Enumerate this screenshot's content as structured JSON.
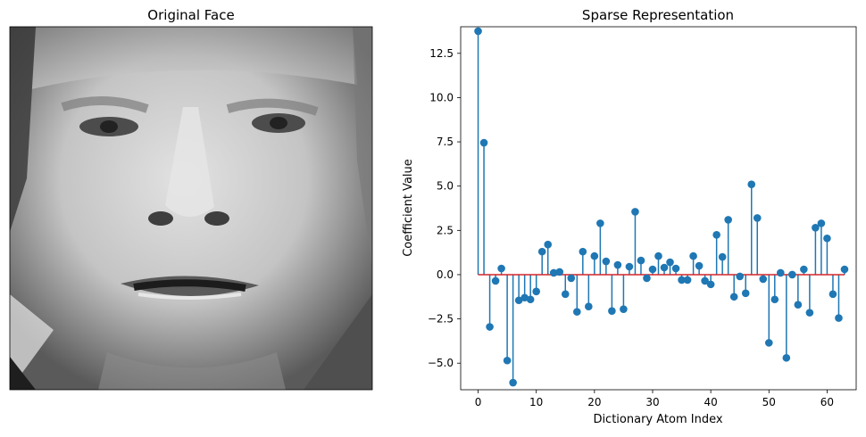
{
  "panels": [
    {
      "title": "Original Face"
    },
    {
      "title": "Sparse Representation"
    }
  ],
  "face_image": {
    "description_name": "grayscale-face-photo",
    "colormap": "gray"
  },
  "chart_data": {
    "type": "stem",
    "title": "Sparse Representation",
    "xlabel": "Dictionary Atom Index",
    "ylabel": "Coefficient Value",
    "xlim": [
      -3,
      65
    ],
    "ylim": [
      -6.5,
      14.0
    ],
    "xticks": [
      0,
      10,
      20,
      30,
      40,
      50,
      60
    ],
    "xtick_labels": [
      "0",
      "10",
      "20",
      "30",
      "40",
      "50",
      "60"
    ],
    "yticks": [
      -5.0,
      -2.5,
      0.0,
      2.5,
      5.0,
      7.5,
      10.0,
      12.5
    ],
    "ytick_labels": [
      "−5.0",
      "−2.5",
      "0.0",
      "2.5",
      "5.0",
      "7.5",
      "10.0",
      "12.5"
    ],
    "grid": false,
    "baseline": 0,
    "colors": {
      "stem": "#1f77b4",
      "marker": "#1f77b4",
      "baseline": "#d62728"
    },
    "x": [
      0,
      1,
      2,
      3,
      4,
      5,
      6,
      7,
      8,
      9,
      10,
      11,
      12,
      13,
      14,
      15,
      16,
      17,
      18,
      19,
      20,
      21,
      22,
      23,
      24,
      25,
      26,
      27,
      28,
      29,
      30,
      31,
      32,
      33,
      34,
      35,
      36,
      37,
      38,
      39,
      40,
      41,
      42,
      43,
      44,
      45,
      46,
      47,
      48,
      49,
      50,
      51,
      52,
      53,
      54,
      55,
      56,
      57,
      58,
      59,
      60,
      61,
      62,
      63
    ],
    "values": [
      13.75,
      7.45,
      -2.95,
      -0.35,
      0.35,
      -4.85,
      -6.1,
      -1.45,
      -1.3,
      -1.4,
      -0.95,
      1.3,
      1.7,
      0.1,
      0.15,
      -1.1,
      -0.2,
      -2.1,
      1.3,
      -1.8,
      1.05,
      2.9,
      0.75,
      -2.05,
      0.55,
      -1.95,
      0.45,
      3.55,
      0.8,
      -0.2,
      0.3,
      1.05,
      0.4,
      0.7,
      0.35,
      -0.3,
      -0.3,
      1.05,
      0.5,
      -0.35,
      -0.55,
      2.25,
      1.0,
      3.1,
      -1.25,
      -0.1,
      -1.05,
      5.1,
      3.2,
      -0.25,
      -3.85,
      -1.4,
      0.1,
      -4.7,
      0.0,
      -1.7,
      0.3,
      -2.15,
      2.65,
      2.9,
      2.05,
      -1.1,
      -2.45,
      0.3
    ]
  }
}
